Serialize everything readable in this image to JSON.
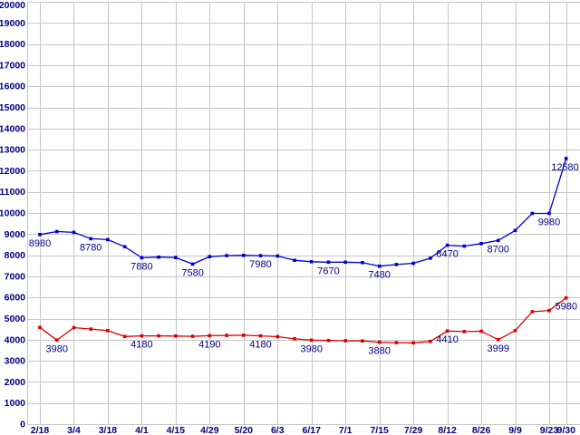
{
  "chart_data": {
    "type": "line",
    "title": "",
    "xlabel": "",
    "ylabel": "",
    "grid": true,
    "legend_position": "none",
    "ylim": [
      0,
      20000
    ],
    "y_tick_step": 1000,
    "y_tick_labels": [
      "0",
      "1000",
      "2000",
      "3000",
      "4000",
      "5000",
      "6000",
      "7000",
      "8000",
      "9000",
      "10000",
      "11000",
      "12000",
      "13000",
      "14000",
      "15000",
      "16000",
      "17000",
      "18000",
      "19000",
      "20000"
    ],
    "x_tick_labels": [
      "2/18",
      "3/4",
      "3/18",
      "4/1",
      "4/15",
      "4/29",
      "5/20",
      "6/3",
      "6/17",
      "7/1",
      "7/15",
      "7/29",
      "8/12",
      "8/26",
      "9/9",
      "9/23",
      "9/30"
    ],
    "points_per_labeled_tick": 2,
    "series": [
      {
        "name": "upper-blue-series",
        "color": "#0000cc",
        "marker": "square",
        "values": [
          8980,
          9120,
          9080,
          8780,
          8740,
          8400,
          7880,
          7910,
          7890,
          7580,
          7930,
          7980,
          7990,
          7980,
          7960,
          7760,
          7690,
          7670,
          7670,
          7650,
          7480,
          7560,
          7620,
          7860,
          8470,
          8430,
          8550,
          8700,
          9170,
          9980,
          9980,
          12580
        ],
        "point_labels": [
          {
            "i": 0,
            "text": "8980"
          },
          {
            "i": 3,
            "text": "8780"
          },
          {
            "i": 6,
            "text": "7880"
          },
          {
            "i": 9,
            "text": "7580"
          },
          {
            "i": 13,
            "text": "7980"
          },
          {
            "i": 17,
            "text": "7670"
          },
          {
            "i": 20,
            "text": "7480"
          },
          {
            "i": 24,
            "text": "8470"
          },
          {
            "i": 27,
            "text": "8700"
          },
          {
            "i": 30,
            "text": "9980"
          },
          {
            "i": 31,
            "text": "12580"
          }
        ]
      },
      {
        "name": "lower-red-series",
        "color": "#dd0000",
        "marker": "square",
        "values": [
          4580,
          3980,
          4570,
          4500,
          4430,
          4150,
          4180,
          4180,
          4170,
          4160,
          4190,
          4200,
          4210,
          4180,
          4140,
          4040,
          3980,
          3960,
          3950,
          3940,
          3880,
          3860,
          3850,
          3920,
          4410,
          4380,
          4400,
          3999,
          4430,
          5320,
          5380,
          5980
        ],
        "point_labels": [
          {
            "i": 1,
            "text": "3980"
          },
          {
            "i": 6,
            "text": "4180"
          },
          {
            "i": 10,
            "text": "4190"
          },
          {
            "i": 13,
            "text": "4180"
          },
          {
            "i": 16,
            "text": "3980"
          },
          {
            "i": 20,
            "text": "3880"
          },
          {
            "i": 24,
            "text": "4410"
          },
          {
            "i": 27,
            "text": "3999"
          },
          {
            "i": 31,
            "text": "5980"
          }
        ]
      }
    ]
  },
  "colors": {
    "background": "#ffffff",
    "grid": "#c6c6c6",
    "axis_text": "#000080",
    "point_label_text": "#000080",
    "series_blue": "#0000cc",
    "series_red": "#dd0000"
  }
}
